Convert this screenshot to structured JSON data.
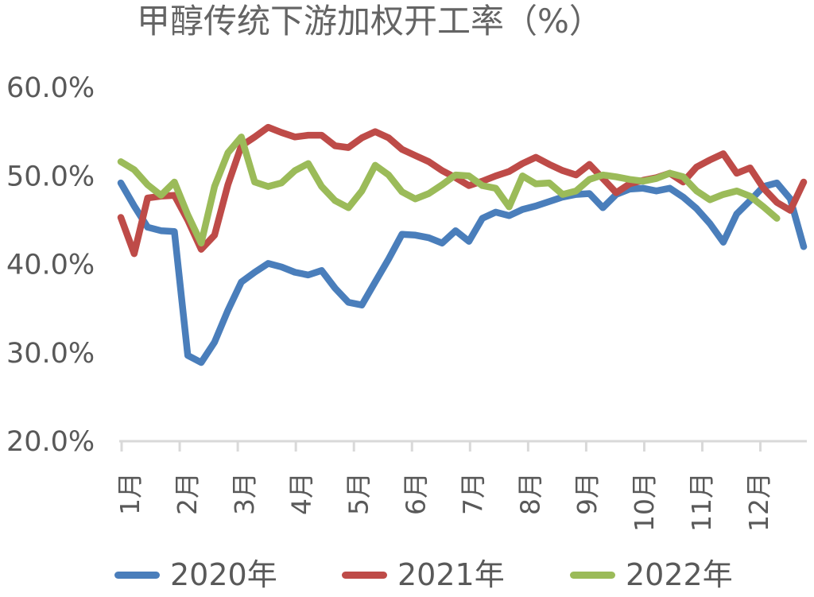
{
  "title": "甲醇传统下游加权开工率（%）",
  "colors": {
    "series_2020": "#4A7EBB",
    "series_2021": "#BE4B48",
    "series_2022": "#9BBB59",
    "axis_line": "#D9D9D9",
    "label_text": "#595959",
    "title_text": "#646464",
    "background": "#FFFFFF"
  },
  "chart_data": {
    "type": "line",
    "title": "甲醇传统下游加权开工率（%）",
    "x_resolution": "weekly points across one year, overlaid by year",
    "grid": false,
    "legend_position": "bottom",
    "x_axis": {
      "categories": [
        "1月",
        "2月",
        "3月",
        "4月",
        "5月",
        "6月",
        "7月",
        "8月",
        "9月",
        "10月",
        "11月",
        "12月"
      ],
      "label_rotation_deg": -90
    },
    "y_axis": {
      "range": [
        20,
        60
      ],
      "unit": "%",
      "ticks": [
        {
          "label": "60.0%",
          "value": 60
        },
        {
          "label": "50.0%",
          "value": 50
        },
        {
          "label": "40.0%",
          "value": 40
        },
        {
          "label": "30.0%",
          "value": 30
        },
        {
          "label": "20.0%",
          "value": 20
        }
      ]
    },
    "series": [
      {
        "name": "2020年",
        "color": "#4A7EBB",
        "values": [
          49.2,
          46.6,
          44.2,
          43.8,
          43.7,
          29.7,
          28.9,
          31.2,
          34.8,
          38.0,
          39.1,
          40.1,
          39.7,
          39.1,
          38.8,
          39.3,
          37.3,
          35.7,
          35.4,
          38.0,
          40.6,
          43.4,
          43.3,
          43.0,
          42.4,
          43.8,
          42.6,
          45.2,
          45.9,
          45.5,
          46.2,
          46.6,
          47.1,
          47.6,
          47.9,
          48.0,
          46.4,
          47.9,
          48.5,
          48.6,
          48.3,
          48.6,
          47.6,
          46.3,
          44.6,
          42.5,
          45.7,
          47.2,
          48.8,
          49.2,
          47.4,
          42.0
        ]
      },
      {
        "name": "2021年",
        "color": "#BE4B48",
        "values": [
          45.3,
          41.2,
          47.5,
          47.7,
          47.8,
          45.0,
          41.7,
          43.3,
          49.0,
          53.4,
          54.4,
          55.5,
          54.9,
          54.4,
          54.6,
          54.6,
          53.4,
          53.2,
          54.3,
          55.0,
          54.3,
          53.0,
          52.3,
          51.6,
          50.6,
          49.8,
          48.9,
          49.4,
          50.0,
          50.5,
          51.4,
          52.1,
          51.3,
          50.6,
          50.1,
          51.3,
          49.7,
          48.1,
          49.1,
          49.5,
          49.8,
          50.3,
          49.3,
          51.0,
          51.8,
          52.5,
          50.3,
          50.9,
          48.6,
          47.0,
          46.1,
          49.3
        ]
      },
      {
        "name": "2022年",
        "color": "#9BBB59",
        "values": [
          51.6,
          50.7,
          49.0,
          47.8,
          49.3,
          45.6,
          42.4,
          48.8,
          52.6,
          54.4,
          49.3,
          48.8,
          49.2,
          50.6,
          51.4,
          48.8,
          47.2,
          46.4,
          48.3,
          51.2,
          50.1,
          48.2,
          47.4,
          48.0,
          49.0,
          50.1,
          50.0,
          48.9,
          48.6,
          46.5,
          50.0,
          49.1,
          49.2,
          47.9,
          48.3,
          49.6,
          50.1,
          49.9,
          49.6,
          49.4,
          49.7,
          50.3,
          49.9,
          48.3,
          47.3,
          47.9,
          48.3,
          47.7,
          46.5,
          45.2
        ]
      }
    ]
  }
}
